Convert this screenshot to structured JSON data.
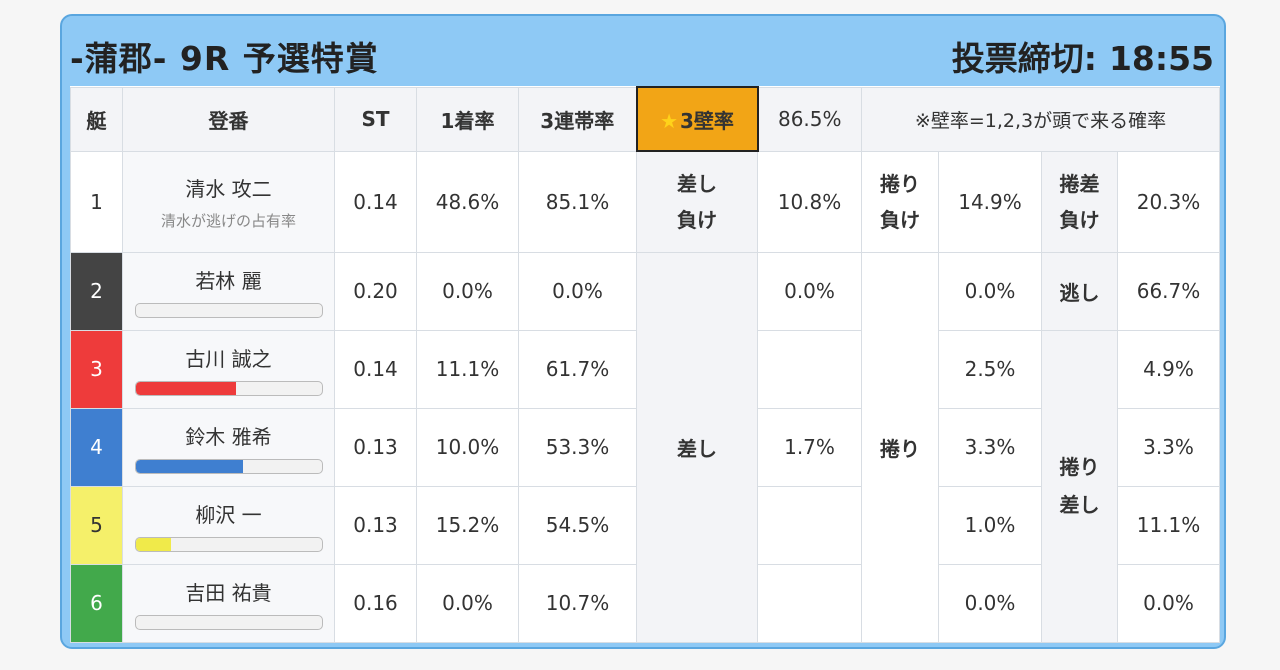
{
  "header": {
    "title": "-蒲郡- 9R 予選特賞",
    "deadline_label": "投票締切:",
    "deadline_time": "18:55"
  },
  "columns": {
    "lane": "艇",
    "name": "登番",
    "st": "ST",
    "first": "1着率",
    "third": "3連帯率",
    "wall_star": "★",
    "wall_label": "3壁率",
    "wall_value": "86.5%",
    "note": "※壁率=1,2,3が頭で来る確率"
  },
  "row1": {
    "lane": "1",
    "name": "清水 攻二",
    "sub": "清水が逃げの占有率",
    "st": "0.14",
    "first": "48.6%",
    "third": "85.1%",
    "sashi_label": "差し\n負け",
    "sashi_value": "10.8%",
    "makuri_label": "捲り\n負け",
    "makuri_value": "14.9%",
    "makurisashi_label": "捲差\n負け",
    "makurisashi_value": "20.3%"
  },
  "groups": {
    "sashi": "差し",
    "sashi_value": "1.7%",
    "makuri": "捲り",
    "nige": "逃し",
    "nige_value": "66.7%",
    "makurisashi": "捲り\n差し"
  },
  "racers": [
    {
      "lane": "2",
      "name": "若林 麗",
      "st": "0.20",
      "first": "0.0%",
      "third": "0.0%",
      "sashi": "0.0%",
      "makuri": "0.0%",
      "ms": "",
      "bar": 0,
      "color": "#444444"
    },
    {
      "lane": "3",
      "name": "古川 誠之",
      "st": "0.14",
      "first": "11.1%",
      "third": "61.7%",
      "sashi": "",
      "makuri": "2.5%",
      "ms": "4.9%",
      "bar": 0.54,
      "color": "#ee3b3b"
    },
    {
      "lane": "4",
      "name": "鈴木 雅希",
      "st": "0.13",
      "first": "10.0%",
      "third": "53.3%",
      "sashi": "",
      "makuri": "3.3%",
      "ms": "3.3%",
      "bar": 0.58,
      "color": "#3f7fd0"
    },
    {
      "lane": "5",
      "name": "柳沢 一",
      "st": "0.13",
      "first": "15.2%",
      "third": "54.5%",
      "sashi": "",
      "makuri": "1.0%",
      "ms": "11.1%",
      "bar": 0.19,
      "color": "#f0ea4a"
    },
    {
      "lane": "6",
      "name": "吉田 祐貴",
      "st": "0.16",
      "first": "0.0%",
      "third": "10.7%",
      "sashi": "",
      "makuri": "0.0%",
      "ms": "0.0%",
      "bar": 0,
      "color": "#42a94b"
    }
  ]
}
